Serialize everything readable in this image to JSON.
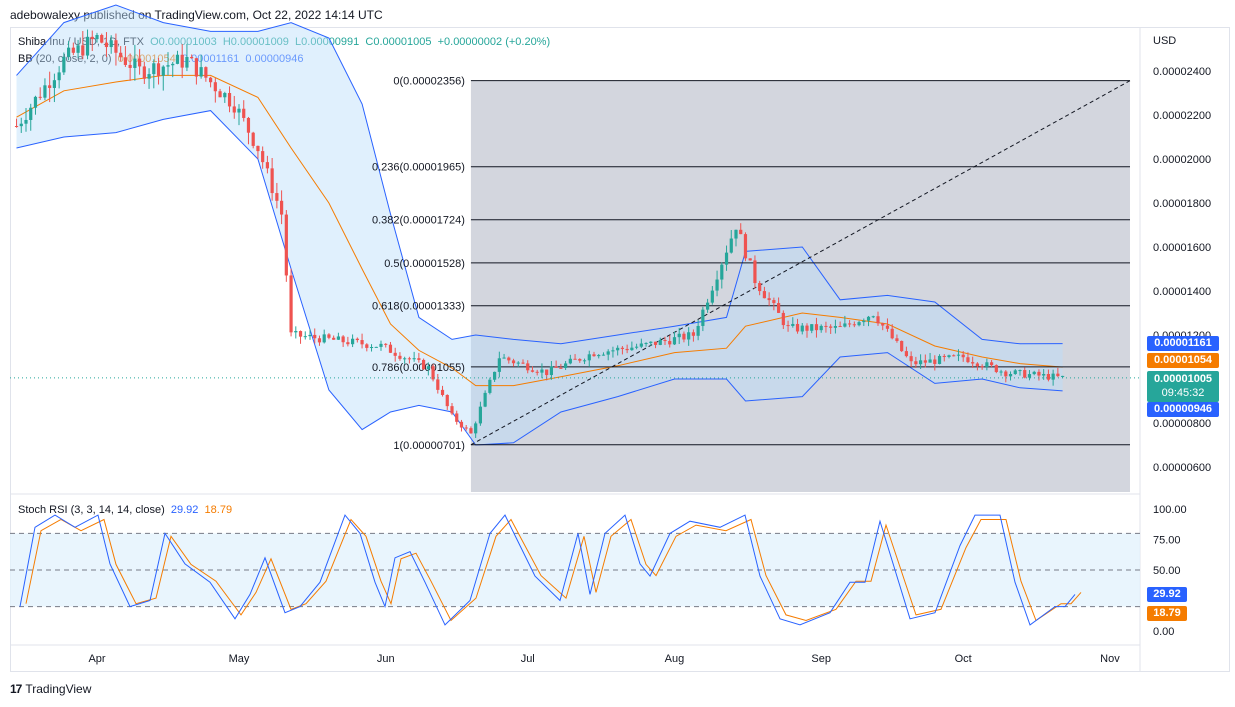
{
  "header": {
    "publisher": "adebowalexy published on TradingView.com, Oct 22, 2022 14:14 UTC"
  },
  "legend": {
    "symbol": "Shiba Inu / USD, 1D, FTX",
    "open": "O0.00001003",
    "high": "H0.00001009",
    "low": "L0.00000991",
    "close": "C0.00001005",
    "change": "+0.00000002 (+0.20%)",
    "bb_label": "BB (20, close, 2, 0)",
    "bb_mid": "0.00001054",
    "bb_upper": "0.00001161",
    "bb_lower": "0.00000946",
    "stoch_label": "Stoch RSI (3, 3, 14, 14, close)",
    "stoch_k": "29.92",
    "stoch_d": "18.79"
  },
  "price_tags": {
    "upper": "0.00001161",
    "mid": "0.00001054",
    "close": "0.00001005",
    "countdown": "09:45:32",
    "lower": "0.00000946",
    "stoch_k": "29.92",
    "stoch_d": "18.79"
  },
  "colors": {
    "up": "#26a69a",
    "down": "#ef5350",
    "bb_band": "#2962ff",
    "bb_mid": "#f57c00",
    "bb_fill": "#e3f2fd",
    "fib_area": "#d1d4dc",
    "stoch_k": "#2962ff",
    "stoch_d": "#f57c00",
    "stoch_band": "#e3f2fd"
  },
  "footer": {
    "brand": "TradingView"
  },
  "chart_data": {
    "type": "candlestick",
    "currency": "USD",
    "price_axis_ticks": [
      "0.00002400",
      "0.00002200",
      "0.00002000",
      "0.00001800",
      "0.00001600",
      "0.00001400",
      "0.00001200",
      "0.00000800",
      "0.00000600"
    ],
    "stoch_axis_ticks": [
      "100.00",
      "75.00",
      "50.00",
      "0.00"
    ],
    "time_axis": [
      "Apr",
      "May",
      "Jun",
      "Jul",
      "Aug",
      "Sep",
      "Oct",
      "Nov"
    ],
    "fib_levels": [
      {
        "label": "0(0.00002356)",
        "value": 2.356e-05
      },
      {
        "label": "0.236(0.00001965)",
        "value": 1.965e-05
      },
      {
        "label": "0.382(0.00001724)",
        "value": 1.724e-05
      },
      {
        "label": "0.5(0.00001528)",
        "value": 1.528e-05
      },
      {
        "label": "0.618(0.00001333)",
        "value": 1.333e-05
      },
      {
        "label": "0.786(0.00001055)",
        "value": 1.055e-05
      },
      {
        "label": "1(0.00000701)",
        "value": 7.01e-06
      }
    ],
    "close_series": [
      {
        "date": "2022-03-15",
        "close": 2.15e-05
      },
      {
        "date": "2022-03-25",
        "close": 2.45e-05
      },
      {
        "date": "2022-04-01",
        "close": 2.55e-05
      },
      {
        "date": "2022-04-10",
        "close": 2.4e-05
      },
      {
        "date": "2022-04-20",
        "close": 2.45e-05
      },
      {
        "date": "2022-04-30",
        "close": 2.25e-05
      },
      {
        "date": "2022-05-05",
        "close": 2.05e-05
      },
      {
        "date": "2022-05-10",
        "close": 1.75e-05
      },
      {
        "date": "2022-05-12",
        "close": 1.2e-05
      },
      {
        "date": "2022-05-20",
        "close": 1.18e-05
      },
      {
        "date": "2022-05-31",
        "close": 1.15e-05
      },
      {
        "date": "2022-06-10",
        "close": 1.05e-05
      },
      {
        "date": "2022-06-15",
        "close": 8.3e-06
      },
      {
        "date": "2022-06-19",
        "close": 7.5e-06
      },
      {
        "date": "2022-06-25",
        "close": 1.1e-05
      },
      {
        "date": "2022-07-05",
        "close": 1.03e-05
      },
      {
        "date": "2022-07-15",
        "close": 1.12e-05
      },
      {
        "date": "2022-07-25",
        "close": 1.15e-05
      },
      {
        "date": "2022-08-05",
        "close": 1.2e-05
      },
      {
        "date": "2022-08-14",
        "close": 1.7e-05
      },
      {
        "date": "2022-08-18",
        "close": 1.45e-05
      },
      {
        "date": "2022-08-25",
        "close": 1.23e-05
      },
      {
        "date": "2022-09-05",
        "close": 1.23e-05
      },
      {
        "date": "2022-09-12",
        "close": 1.3e-05
      },
      {
        "date": "2022-09-20",
        "close": 1.07e-05
      },
      {
        "date": "2022-10-01",
        "close": 1.1e-05
      },
      {
        "date": "2022-10-10",
        "close": 1.03e-05
      },
      {
        "date": "2022-10-22",
        "close": 1.005e-05
      }
    ],
    "bollinger": {
      "upper": 1.161e-05,
      "middle": 1.054e-05,
      "lower": 9.46e-06
    },
    "stoch_rsi": {
      "k": 29.92,
      "d": 18.79
    }
  }
}
